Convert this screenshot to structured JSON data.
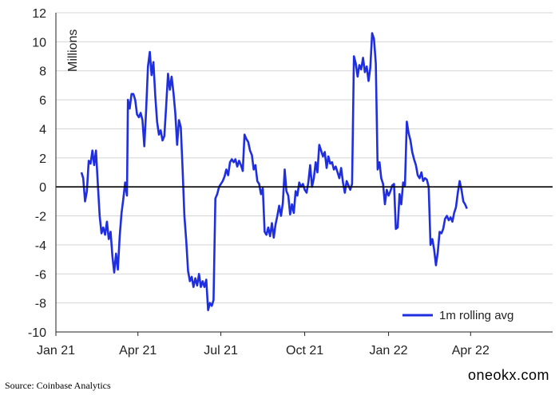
{
  "chart_data": {
    "type": "line",
    "ylabel": "Millions",
    "ylim": [
      -10,
      12
    ],
    "yticks": [
      -10,
      -8,
      -6,
      -4,
      -2,
      0,
      2,
      4,
      6,
      8,
      10,
      12
    ],
    "xlim": [
      "2021-01-01",
      "2022-06-30"
    ],
    "xticks": [
      {
        "date": "2021-01-01",
        "label": "Jan 21"
      },
      {
        "date": "2021-04-01",
        "label": "Apr 21"
      },
      {
        "date": "2021-07-01",
        "label": "Jul 21"
      },
      {
        "date": "2021-10-01",
        "label": "Oct 21"
      },
      {
        "date": "2022-01-01",
        "label": "Jan 22"
      },
      {
        "date": "2022-04-01",
        "label": "Apr 22"
      }
    ],
    "grid": "horizontal",
    "zero_line": true,
    "legend_position": "bottom-right",
    "series": [
      {
        "name": "1m rolling avg",
        "color": "#1f2fe0",
        "points": [
          [
            "2021-01-29",
            1.0
          ],
          [
            "2021-01-31",
            0.6
          ],
          [
            "2021-02-02",
            -1.0
          ],
          [
            "2021-02-04",
            -0.3
          ],
          [
            "2021-02-06",
            1.8
          ],
          [
            "2021-02-08",
            1.6
          ],
          [
            "2021-02-10",
            2.5
          ],
          [
            "2021-02-12",
            1.5
          ],
          [
            "2021-02-14",
            2.5
          ],
          [
            "2021-02-16",
            0.2
          ],
          [
            "2021-02-18",
            -2.0
          ],
          [
            "2021-02-20",
            -3.2
          ],
          [
            "2021-02-22",
            -2.8
          ],
          [
            "2021-02-24",
            -3.3
          ],
          [
            "2021-02-26",
            -2.4
          ],
          [
            "2021-02-28",
            -3.6
          ],
          [
            "2021-03-02",
            -3.1
          ],
          [
            "2021-03-04",
            -4.8
          ],
          [
            "2021-03-06",
            -5.9
          ],
          [
            "2021-03-08",
            -4.6
          ],
          [
            "2021-03-10",
            -5.7
          ],
          [
            "2021-03-12",
            -3.4
          ],
          [
            "2021-03-14",
            -1.8
          ],
          [
            "2021-03-16",
            -0.8
          ],
          [
            "2021-03-18",
            0.3
          ],
          [
            "2021-03-20",
            -0.6
          ],
          [
            "2021-03-21",
            6.0
          ],
          [
            "2021-03-23",
            5.4
          ],
          [
            "2021-03-25",
            6.4
          ],
          [
            "2021-03-27",
            6.4
          ],
          [
            "2021-03-29",
            6.0
          ],
          [
            "2021-03-31",
            5.0
          ],
          [
            "2021-04-02",
            4.8
          ],
          [
            "2021-04-04",
            5.1
          ],
          [
            "2021-04-06",
            4.6
          ],
          [
            "2021-04-08",
            2.8
          ],
          [
            "2021-04-10",
            5.3
          ],
          [
            "2021-04-12",
            8.3
          ],
          [
            "2021-04-14",
            9.3
          ],
          [
            "2021-04-16",
            7.7
          ],
          [
            "2021-04-18",
            8.6
          ],
          [
            "2021-04-20",
            6.3
          ],
          [
            "2021-04-22",
            4.5
          ],
          [
            "2021-04-24",
            3.6
          ],
          [
            "2021-04-26",
            3.9
          ],
          [
            "2021-04-28",
            3.2
          ],
          [
            "2021-04-30",
            3.5
          ],
          [
            "2021-05-02",
            5.6
          ],
          [
            "2021-05-04",
            7.8
          ],
          [
            "2021-05-06",
            6.7
          ],
          [
            "2021-05-08",
            7.6
          ],
          [
            "2021-05-10",
            6.5
          ],
          [
            "2021-05-12",
            5.1
          ],
          [
            "2021-05-14",
            2.9
          ],
          [
            "2021-05-16",
            4.6
          ],
          [
            "2021-05-18",
            4.1
          ],
          [
            "2021-05-20",
            1.3
          ],
          [
            "2021-05-22",
            -2.0
          ],
          [
            "2021-05-24",
            -3.7
          ],
          [
            "2021-05-26",
            -5.8
          ],
          [
            "2021-05-28",
            -6.5
          ],
          [
            "2021-05-30",
            -6.2
          ],
          [
            "2021-06-01",
            -6.9
          ],
          [
            "2021-06-03",
            -6.3
          ],
          [
            "2021-06-05",
            -6.8
          ],
          [
            "2021-06-07",
            -6.0
          ],
          [
            "2021-06-09",
            -6.9
          ],
          [
            "2021-06-11",
            -6.5
          ],
          [
            "2021-06-13",
            -6.9
          ],
          [
            "2021-06-15",
            -6.4
          ],
          [
            "2021-06-17",
            -8.5
          ],
          [
            "2021-06-19",
            -8.0
          ],
          [
            "2021-06-21",
            -8.2
          ],
          [
            "2021-06-23",
            -7.8
          ],
          [
            "2021-06-25",
            -0.8
          ],
          [
            "2021-06-27",
            -0.5
          ],
          [
            "2021-06-29",
            0.0
          ],
          [
            "2021-07-01",
            0.2
          ],
          [
            "2021-07-03",
            0.4
          ],
          [
            "2021-07-05",
            0.7
          ],
          [
            "2021-07-07",
            1.2
          ],
          [
            "2021-07-09",
            0.8
          ],
          [
            "2021-07-11",
            1.7
          ],
          [
            "2021-07-13",
            1.9
          ],
          [
            "2021-07-15",
            1.7
          ],
          [
            "2021-07-17",
            1.9
          ],
          [
            "2021-07-19",
            1.4
          ],
          [
            "2021-07-21",
            1.8
          ],
          [
            "2021-07-23",
            1.5
          ],
          [
            "2021-07-25",
            1.1
          ],
          [
            "2021-07-27",
            3.6
          ],
          [
            "2021-07-29",
            3.3
          ],
          [
            "2021-07-31",
            3.1
          ],
          [
            "2021-08-02",
            2.5
          ],
          [
            "2021-08-04",
            2.2
          ],
          [
            "2021-08-06",
            1.2
          ],
          [
            "2021-08-08",
            1.5
          ],
          [
            "2021-08-10",
            0.4
          ],
          [
            "2021-08-12",
            0.2
          ],
          [
            "2021-08-14",
            -0.5
          ],
          [
            "2021-08-16",
            -0.1
          ],
          [
            "2021-08-18",
            -3.1
          ],
          [
            "2021-08-20",
            -3.3
          ],
          [
            "2021-08-22",
            -2.8
          ],
          [
            "2021-08-24",
            -3.4
          ],
          [
            "2021-08-26",
            -2.5
          ],
          [
            "2021-08-28",
            -3.5
          ],
          [
            "2021-08-30",
            -2.6
          ],
          [
            "2021-09-01",
            -2.0
          ],
          [
            "2021-09-03",
            -1.3
          ],
          [
            "2021-09-05",
            -2.0
          ],
          [
            "2021-09-07",
            -1.1
          ],
          [
            "2021-09-09",
            1.2
          ],
          [
            "2021-09-11",
            -0.3
          ],
          [
            "2021-09-13",
            -0.6
          ],
          [
            "2021-09-15",
            -1.9
          ],
          [
            "2021-09-17",
            -1.2
          ],
          [
            "2021-09-19",
            -1.8
          ],
          [
            "2021-09-21",
            -0.3
          ],
          [
            "2021-09-23",
            -0.6
          ],
          [
            "2021-09-25",
            0.3
          ],
          [
            "2021-09-27",
            0.0
          ],
          [
            "2021-09-29",
            0.2
          ],
          [
            "2021-10-01",
            -0.2
          ],
          [
            "2021-10-03",
            -0.4
          ],
          [
            "2021-10-05",
            0.3
          ],
          [
            "2021-10-07",
            1.5
          ],
          [
            "2021-10-09",
            0.0
          ],
          [
            "2021-10-11",
            0.6
          ],
          [
            "2021-10-13",
            1.7
          ],
          [
            "2021-10-15",
            1.0
          ],
          [
            "2021-10-17",
            2.9
          ],
          [
            "2021-10-19",
            2.5
          ],
          [
            "2021-10-21",
            2.1
          ],
          [
            "2021-10-23",
            2.4
          ],
          [
            "2021-10-25",
            1.3
          ],
          [
            "2021-10-27",
            2.1
          ],
          [
            "2021-10-29",
            1.6
          ],
          [
            "2021-10-31",
            1.7
          ],
          [
            "2021-11-02",
            1.2
          ],
          [
            "2021-11-04",
            1.4
          ],
          [
            "2021-11-06",
            1.0
          ],
          [
            "2021-11-08",
            0.6
          ],
          [
            "2021-11-10",
            1.3
          ],
          [
            "2021-11-12",
            0.3
          ],
          [
            "2021-11-14",
            -0.4
          ],
          [
            "2021-11-16",
            0.4
          ],
          [
            "2021-11-18",
            0.1
          ],
          [
            "2021-11-20",
            -0.2
          ],
          [
            "2021-11-22",
            0.2
          ],
          [
            "2021-11-24",
            9.0
          ],
          [
            "2021-11-26",
            8.5
          ],
          [
            "2021-11-28",
            7.6
          ],
          [
            "2021-11-30",
            8.4
          ],
          [
            "2021-12-02",
            8.1
          ],
          [
            "2021-12-04",
            8.9
          ],
          [
            "2021-12-06",
            7.9
          ],
          [
            "2021-12-08",
            8.3
          ],
          [
            "2021-12-10",
            7.3
          ],
          [
            "2021-12-12",
            8.2
          ],
          [
            "2021-12-14",
            10.6
          ],
          [
            "2021-12-16",
            10.2
          ],
          [
            "2021-12-18",
            8.5
          ],
          [
            "2021-12-20",
            1.2
          ],
          [
            "2021-12-22",
            1.7
          ],
          [
            "2021-12-24",
            0.6
          ],
          [
            "2021-12-26",
            0.2
          ],
          [
            "2021-12-28",
            -1.2
          ],
          [
            "2021-12-30",
            -0.2
          ],
          [
            "2022-01-01",
            -0.6
          ],
          [
            "2022-01-03",
            -0.3
          ],
          [
            "2022-01-05",
            0.1
          ],
          [
            "2022-01-07",
            0.2
          ],
          [
            "2022-01-09",
            -2.9
          ],
          [
            "2022-01-11",
            -2.8
          ],
          [
            "2022-01-13",
            -0.5
          ],
          [
            "2022-01-15",
            -1.2
          ],
          [
            "2022-01-17",
            0.3
          ],
          [
            "2022-01-19",
            0.1
          ],
          [
            "2022-01-21",
            4.5
          ],
          [
            "2022-01-23",
            3.7
          ],
          [
            "2022-01-25",
            3.2
          ],
          [
            "2022-01-27",
            2.4
          ],
          [
            "2022-01-29",
            1.9
          ],
          [
            "2022-01-31",
            1.5
          ],
          [
            "2022-02-02",
            0.8
          ],
          [
            "2022-02-04",
            0.6
          ],
          [
            "2022-02-06",
            1.0
          ],
          [
            "2022-02-08",
            0.4
          ],
          [
            "2022-02-10",
            0.6
          ],
          [
            "2022-02-12",
            0.5
          ],
          [
            "2022-02-14",
            0.0
          ],
          [
            "2022-02-16",
            -4.0
          ],
          [
            "2022-02-18",
            -3.6
          ],
          [
            "2022-02-20",
            -4.3
          ],
          [
            "2022-02-22",
            -5.4
          ],
          [
            "2022-02-24",
            -4.5
          ],
          [
            "2022-02-26",
            -3.1
          ],
          [
            "2022-02-28",
            -3.2
          ],
          [
            "2022-03-02",
            -2.9
          ],
          [
            "2022-03-04",
            -2.2
          ],
          [
            "2022-03-06",
            -2.0
          ],
          [
            "2022-03-08",
            -2.3
          ],
          [
            "2022-03-10",
            -2.1
          ],
          [
            "2022-03-12",
            -2.4
          ],
          [
            "2022-03-14",
            -1.8
          ],
          [
            "2022-03-16",
            -1.4
          ],
          [
            "2022-03-18",
            -0.4
          ],
          [
            "2022-03-20",
            0.4
          ],
          [
            "2022-03-22",
            -0.2
          ],
          [
            "2022-03-24",
            -1.0
          ],
          [
            "2022-03-26",
            -1.2
          ],
          [
            "2022-03-28",
            -1.5
          ]
        ]
      }
    ]
  },
  "source": "Source: Coinbase Analytics",
  "watermark": "oneokx.com"
}
